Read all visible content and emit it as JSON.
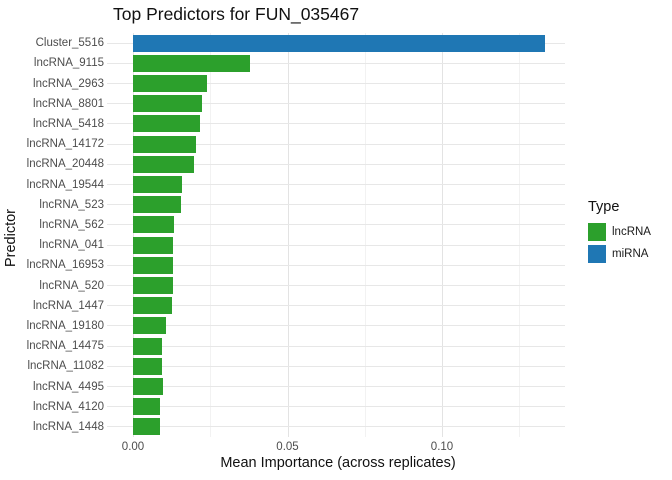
{
  "chart_data": {
    "type": "bar",
    "orientation": "horizontal",
    "title": "Top Predictors for FUN_035467",
    "xlabel": "Mean Importance (across replicates)",
    "ylabel": "Predictor",
    "xlim": [
      -0.0084,
      0.1398
    ],
    "grid": true,
    "x_major_ticks": [
      0,
      0.05,
      0.1
    ],
    "x_major_tick_labels": [
      "0.00",
      "0.05",
      "0.10"
    ],
    "x_minor_ticks": [
      0.025,
      0.075,
      0.125
    ],
    "bars": [
      {
        "label": "Cluster_5516",
        "value": 0.1332,
        "type": "miRNA"
      },
      {
        "label": "lncRNA_9115",
        "value": 0.0379,
        "type": "lncRNA"
      },
      {
        "label": "lncRNA_2963",
        "value": 0.0238,
        "type": "lncRNA"
      },
      {
        "label": "lncRNA_8801",
        "value": 0.0223,
        "type": "lncRNA"
      },
      {
        "label": "lncRNA_5418",
        "value": 0.0217,
        "type": "lncRNA"
      },
      {
        "label": "lncRNA_14172",
        "value": 0.0204,
        "type": "lncRNA"
      },
      {
        "label": "lncRNA_20448",
        "value": 0.0198,
        "type": "lncRNA"
      },
      {
        "label": "lncRNA_19544",
        "value": 0.016,
        "type": "lncRNA"
      },
      {
        "label": "lncRNA_523",
        "value": 0.0155,
        "type": "lncRNA"
      },
      {
        "label": "lncRNA_562",
        "value": 0.0133,
        "type": "lncRNA"
      },
      {
        "label": "lncRNA_041",
        "value": 0.0129,
        "type": "lncRNA"
      },
      {
        "label": "lncRNA_16953",
        "value": 0.0129,
        "type": "lncRNA"
      },
      {
        "label": "lncRNA_520",
        "value": 0.0129,
        "type": "lncRNA"
      },
      {
        "label": "lncRNA_1447",
        "value": 0.0127,
        "type": "lncRNA"
      },
      {
        "label": "lncRNA_19180",
        "value": 0.0108,
        "type": "lncRNA"
      },
      {
        "label": "lncRNA_14475",
        "value": 0.0093,
        "type": "lncRNA"
      },
      {
        "label": "lncRNA_11082",
        "value": 0.0093,
        "type": "lncRNA"
      },
      {
        "label": "lncRNA_4495",
        "value": 0.0097,
        "type": "lncRNA"
      },
      {
        "label": "lncRNA_4120",
        "value": 0.0088,
        "type": "lncRNA"
      },
      {
        "label": "lncRNA_1448",
        "value": 0.0086,
        "type": "lncRNA"
      }
    ],
    "legend": {
      "title": "Type",
      "position": "right",
      "entries": [
        {
          "label": "lncRNA",
          "color": "#2CA02C"
        },
        {
          "label": "miRNA",
          "color": "#1F77B4"
        }
      ]
    }
  }
}
